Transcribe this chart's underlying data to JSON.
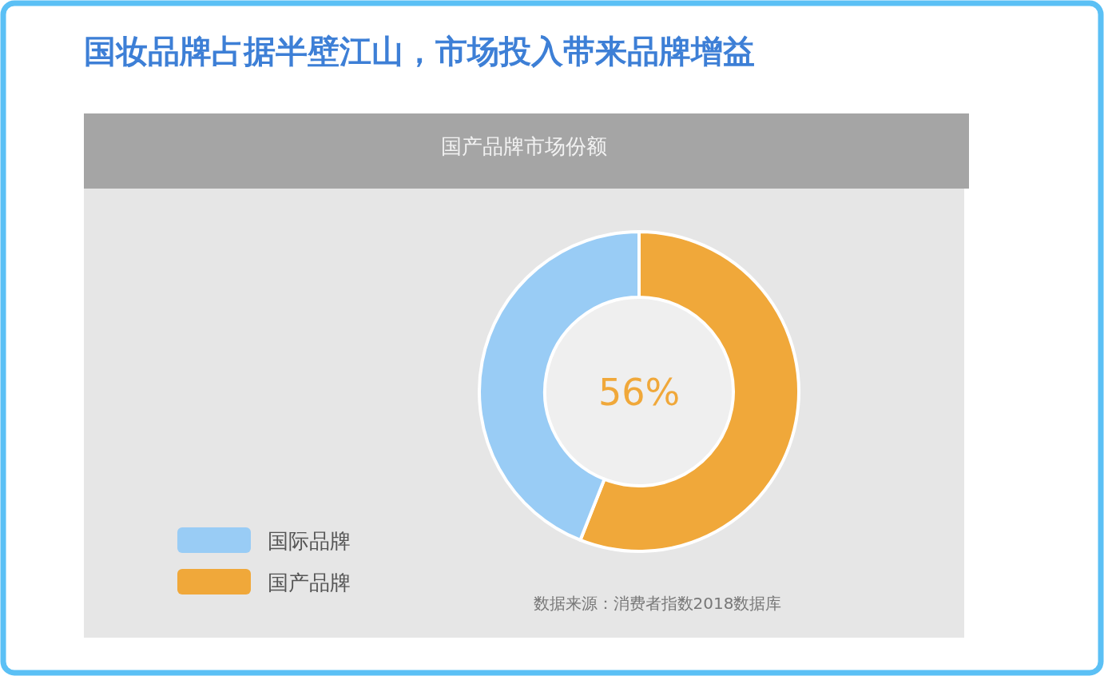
{
  "chart_data": {
    "type": "donut",
    "title": "国妆品牌占据半壁江山，市场投入带来品牌增益",
    "subtitle": "国产品牌市场份额",
    "categories": [
      "国际品牌",
      "国产品牌"
    ],
    "values": [
      44,
      56
    ],
    "colors": [
      "#99ccf5",
      "#f0a83a"
    ],
    "legend": "bottom left",
    "annotations": [
      "56%",
      "数据来源：消费者指数2018数据库"
    ]
  }
}
